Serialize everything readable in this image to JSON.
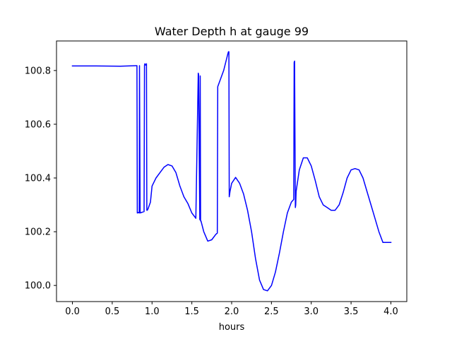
{
  "chart_data": {
    "type": "line",
    "title": "Water Depth h at gauge 99",
    "xlabel": "hours",
    "ylabel": "",
    "xlim": [
      -0.2,
      4.2
    ],
    "ylim": [
      99.94,
      100.91
    ],
    "xticks": [
      0.0,
      0.5,
      1.0,
      1.5,
      2.0,
      2.5,
      3.0,
      3.5,
      4.0
    ],
    "xtick_labels": [
      "0.0",
      "0.5",
      "1.0",
      "1.5",
      "2.0",
      "2.5",
      "3.0",
      "3.5",
      "4.0"
    ],
    "yticks": [
      100.0,
      100.2,
      100.4,
      100.6,
      100.8
    ],
    "ytick_labels": [
      "100.0",
      "100.2",
      "100.4",
      "100.6",
      "100.8"
    ],
    "grid": false,
    "series": [
      {
        "color": "#0000ff",
        "x": [
          0.0,
          0.3,
          0.6,
          0.8,
          0.81,
          0.815,
          0.82,
          0.83,
          0.84,
          0.842,
          0.85,
          0.9,
          0.905,
          0.91,
          0.92,
          0.93,
          0.935,
          0.94,
          0.95,
          0.98,
          1.0,
          1.05,
          1.1,
          1.15,
          1.2,
          1.25,
          1.3,
          1.35,
          1.4,
          1.45,
          1.5,
          1.55,
          1.58,
          1.585,
          1.6,
          1.605,
          1.61,
          1.615,
          1.65,
          1.7,
          1.75,
          1.8,
          1.82,
          1.825,
          1.85,
          1.9,
          1.95,
          1.96,
          1.965,
          1.97,
          1.98,
          2.0,
          2.05,
          2.1,
          2.15,
          2.2,
          2.25,
          2.3,
          2.35,
          2.4,
          2.45,
          2.5,
          2.55,
          2.6,
          2.65,
          2.7,
          2.75,
          2.78,
          2.785,
          2.79,
          2.8,
          2.805,
          2.81,
          2.85,
          2.9,
          2.95,
          3.0,
          3.05,
          3.1,
          3.15,
          3.2,
          3.25,
          3.3,
          3.35,
          3.4,
          3.45,
          3.5,
          3.55,
          3.6,
          3.65,
          3.7,
          3.75,
          3.8,
          3.85,
          3.9,
          3.95,
          4.0
        ],
        "y": [
          100.817,
          100.817,
          100.816,
          100.818,
          100.818,
          100.27,
          100.27,
          100.272,
          100.27,
          100.818,
          100.27,
          100.275,
          100.82,
          100.825,
          100.82,
          100.825,
          100.28,
          100.28,
          100.285,
          100.31,
          100.37,
          100.4,
          100.42,
          100.44,
          100.45,
          100.445,
          100.42,
          100.37,
          100.33,
          100.305,
          100.27,
          100.25,
          100.79,
          100.785,
          100.245,
          100.78,
          100.24,
          100.24,
          100.2,
          100.165,
          100.17,
          100.19,
          100.195,
          100.74,
          100.76,
          100.8,
          100.86,
          100.87,
          100.87,
          100.33,
          100.35,
          100.38,
          100.402,
          100.38,
          100.34,
          100.28,
          100.2,
          100.1,
          100.02,
          99.985,
          99.98,
          100.0,
          100.05,
          100.12,
          100.2,
          100.27,
          100.31,
          100.32,
          100.83,
          100.835,
          100.29,
          100.3,
          100.35,
          100.43,
          100.475,
          100.475,
          100.445,
          100.39,
          100.33,
          100.3,
          100.29,
          100.28,
          100.28,
          100.3,
          100.345,
          100.4,
          100.43,
          100.435,
          100.43,
          100.4,
          100.35,
          100.3,
          100.25,
          100.2,
          100.16,
          100.16,
          100.16
        ]
      }
    ]
  }
}
